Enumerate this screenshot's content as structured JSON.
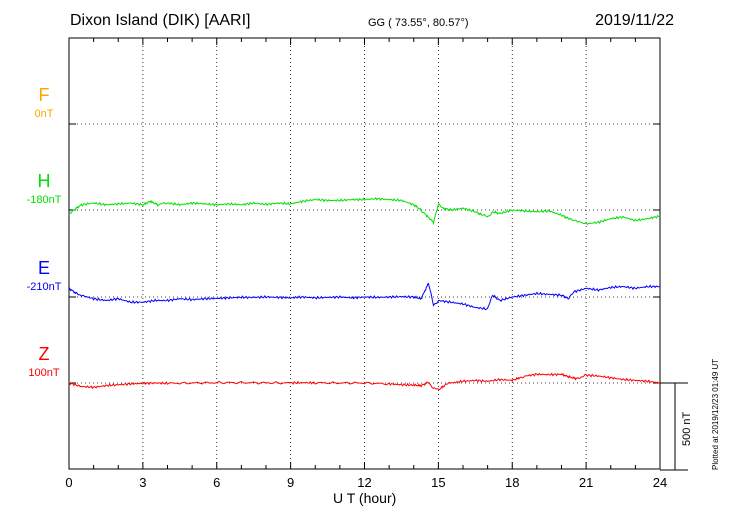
{
  "header": {
    "title": "Dixon Island (DIK)  [AARI]",
    "coords": "GG ( 73.55°,  80.57°)",
    "date": "2019/11/22"
  },
  "footer": {
    "plotted": "Plotted at 2019/12/23 01:49 UT",
    "scale_bar": "500 nT"
  },
  "chart_data": {
    "type": "line",
    "xlabel": "U T (hour)",
    "xlim": [
      0,
      24
    ],
    "xticks": [
      "0",
      "3",
      "6",
      "9",
      "12",
      "15",
      "18",
      "21",
      "24"
    ],
    "components": [
      {
        "name": "F",
        "offset_label": "0nT",
        "color": "#ffa500",
        "values": []
      },
      {
        "name": "H",
        "offset_label": "-180nT",
        "color": "#00e000",
        "points": [
          [
            0,
            -210
          ],
          [
            0.2,
            -180
          ],
          [
            0.5,
            -150
          ],
          [
            1,
            -140
          ],
          [
            1.5,
            -150
          ],
          [
            2,
            -145
          ],
          [
            2.5,
            -140
          ],
          [
            3,
            -150
          ],
          [
            3.3,
            -130
          ],
          [
            3.6,
            -150
          ],
          [
            4,
            -140
          ],
          [
            4.5,
            -150
          ],
          [
            5,
            -140
          ],
          [
            5.5,
            -145
          ],
          [
            6,
            -150
          ],
          [
            6.5,
            -145
          ],
          [
            7,
            -150
          ],
          [
            7.5,
            -140
          ],
          [
            8,
            -148
          ],
          [
            8.5,
            -140
          ],
          [
            9,
            -145
          ],
          [
            9.5,
            -130
          ],
          [
            10,
            -120
          ],
          [
            10.5,
            -125
          ],
          [
            11,
            -125
          ],
          [
            11.5,
            -120
          ],
          [
            12,
            -120
          ],
          [
            12.5,
            -115
          ],
          [
            13,
            -120
          ],
          [
            13.5,
            -125
          ],
          [
            14,
            -150
          ],
          [
            14.3,
            -180
          ],
          [
            14.5,
            -210
          ],
          [
            14.8,
            -250
          ],
          [
            15,
            -150
          ],
          [
            15.2,
            -170
          ],
          [
            15.5,
            -180
          ],
          [
            16,
            -170
          ],
          [
            16.5,
            -190
          ],
          [
            16.8,
            -210
          ],
          [
            17,
            -220
          ],
          [
            17.2,
            -190
          ],
          [
            17.5,
            -200
          ],
          [
            18,
            -180
          ],
          [
            18.5,
            -185
          ],
          [
            19,
            -190
          ],
          [
            19.5,
            -185
          ],
          [
            20,
            -210
          ],
          [
            20.3,
            -230
          ],
          [
            21,
            -260
          ],
          [
            21.5,
            -250
          ],
          [
            22,
            -230
          ],
          [
            22.5,
            -220
          ],
          [
            23,
            -240
          ],
          [
            23.5,
            -230
          ],
          [
            24,
            -215
          ]
        ]
      },
      {
        "name": "E",
        "offset_label": "-210nT",
        "color": "#0000ff",
        "points": [
          [
            0,
            -160
          ],
          [
            0.3,
            -190
          ],
          [
            0.5,
            -200
          ],
          [
            1,
            -220
          ],
          [
            1.5,
            -230
          ],
          [
            2,
            -220
          ],
          [
            2.5,
            -240
          ],
          [
            3,
            -240
          ],
          [
            3.5,
            -230
          ],
          [
            4,
            -230
          ],
          [
            4.5,
            -220
          ],
          [
            5,
            -225
          ],
          [
            5.5,
            -220
          ],
          [
            6,
            -218
          ],
          [
            6.5,
            -215
          ],
          [
            7,
            -212
          ],
          [
            7.5,
            -212
          ],
          [
            8,
            -210
          ],
          [
            8.5,
            -212
          ],
          [
            9,
            -215
          ],
          [
            9.5,
            -210
          ],
          [
            10,
            -215
          ],
          [
            10.5,
            -212
          ],
          [
            11,
            -210
          ],
          [
            11.5,
            -215
          ],
          [
            12,
            -210
          ],
          [
            12.5,
            -212
          ],
          [
            13,
            -210
          ],
          [
            13.5,
            -208
          ],
          [
            14,
            -210
          ],
          [
            14.3,
            -220
          ],
          [
            14.6,
            -130
          ],
          [
            14.8,
            -260
          ],
          [
            15,
            -230
          ],
          [
            15.5,
            -240
          ],
          [
            16,
            -250
          ],
          [
            16.5,
            -270
          ],
          [
            17,
            -280
          ],
          [
            17.2,
            -200
          ],
          [
            17.5,
            -230
          ],
          [
            18,
            -210
          ],
          [
            18.5,
            -200
          ],
          [
            19,
            -190
          ],
          [
            19.5,
            -195
          ],
          [
            20,
            -200
          ],
          [
            20.3,
            -220
          ],
          [
            20.5,
            -180
          ],
          [
            21,
            -160
          ],
          [
            21.5,
            -170
          ],
          [
            22,
            -155
          ],
          [
            22.5,
            -150
          ],
          [
            23,
            -160
          ],
          [
            23.5,
            -150
          ],
          [
            24,
            -150
          ]
        ]
      },
      {
        "name": "Z",
        "offset_label": "100nT",
        "color": "#ff0000",
        "points": [
          [
            0,
            100
          ],
          [
            0.5,
            80
          ],
          [
            1,
            75
          ],
          [
            1.5,
            85
          ],
          [
            2,
            90
          ],
          [
            2.5,
            95
          ],
          [
            3,
            98
          ],
          [
            3.5,
            100
          ],
          [
            4,
            98
          ],
          [
            5,
            100
          ],
          [
            6,
            102
          ],
          [
            7,
            102
          ],
          [
            8,
            101
          ],
          [
            9,
            100
          ],
          [
            9.5,
            102
          ],
          [
            10,
            101
          ],
          [
            11,
            100
          ],
          [
            12,
            100
          ],
          [
            13,
            95
          ],
          [
            13.5,
            90
          ],
          [
            14,
            88
          ],
          [
            14.3,
            85
          ],
          [
            14.6,
            105
          ],
          [
            14.8,
            70
          ],
          [
            15,
            60
          ],
          [
            15.3,
            90
          ],
          [
            15.5,
            100
          ],
          [
            16,
            110
          ],
          [
            16.5,
            115
          ],
          [
            17,
            110
          ],
          [
            17.5,
            120
          ],
          [
            18,
            115
          ],
          [
            18.3,
            130
          ],
          [
            18.5,
            140
          ],
          [
            19,
            150
          ],
          [
            19.5,
            148
          ],
          [
            20,
            150
          ],
          [
            20.3,
            135
          ],
          [
            20.6,
            125
          ],
          [
            21,
            145
          ],
          [
            21.5,
            140
          ],
          [
            22,
            130
          ],
          [
            22.5,
            120
          ],
          [
            23,
            115
          ],
          [
            23.5,
            110
          ],
          [
            24,
            100
          ]
        ]
      }
    ]
  }
}
